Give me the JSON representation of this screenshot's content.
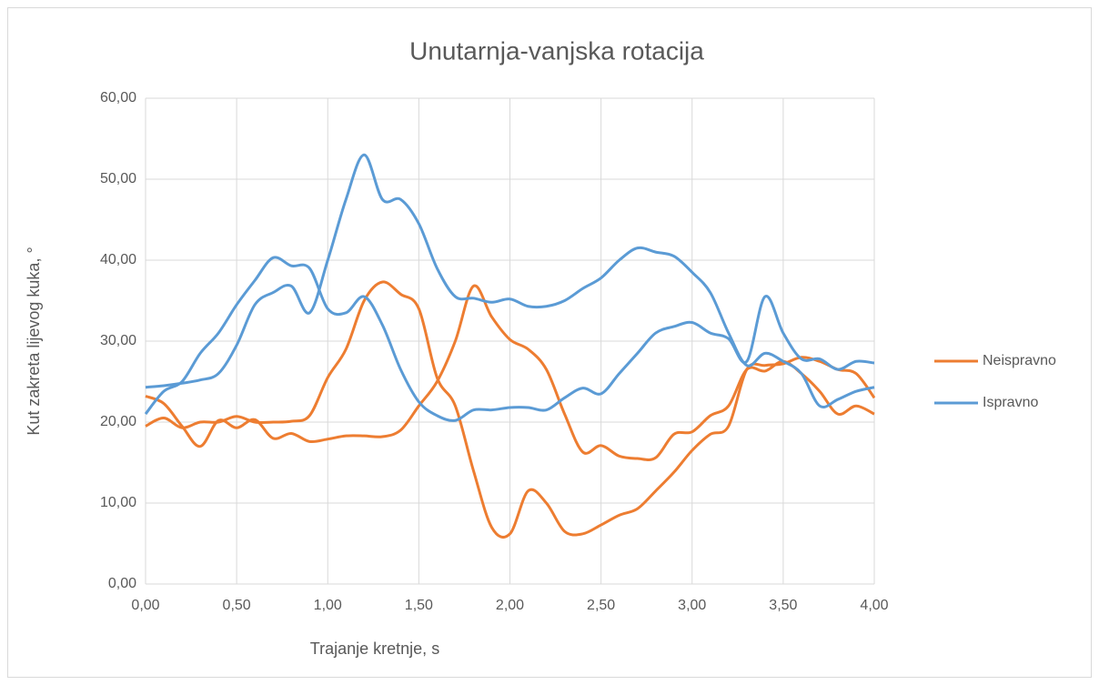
{
  "chart_data": {
    "type": "line",
    "title": "Unutarnja-vanjska rotacija",
    "x_label": "Trajanje kretnje, s",
    "y_label": "Kut zakreta lijevog kuka, °",
    "x": [
      0,
      0.1,
      0.2,
      0.3,
      0.4,
      0.5,
      0.6,
      0.7,
      0.8,
      0.9,
      1.0,
      1.1,
      1.2,
      1.3,
      1.4,
      1.5,
      1.6,
      1.7,
      1.8,
      1.9,
      2.0,
      2.1,
      2.2,
      2.3,
      2.4,
      2.5,
      2.6,
      2.7,
      2.8,
      2.9,
      3.0,
      3.1,
      3.2,
      3.3,
      3.4,
      3.5,
      3.6,
      3.7,
      3.8,
      3.9,
      4.0
    ],
    "series": [
      {
        "name": "Neispravno",
        "color": "#ed7d31",
        "values": [
          23.2,
          22.3,
          19.5,
          17.0,
          20.2,
          19.3,
          20.3,
          18.0,
          18.6,
          17.6,
          17.9,
          18.3,
          18.3,
          18.2,
          19.0,
          22.0,
          25.0,
          30.0,
          36.8,
          33.0,
          30.2,
          29.0,
          26.5,
          21.0,
          16.3,
          17.1,
          15.8,
          15.5,
          15.6,
          18.5,
          18.8,
          20.8,
          22.0,
          26.5,
          26.3,
          27.5,
          26.0,
          23.8,
          21.0,
          22.0,
          21.0
        ]
      },
      {
        "color": "#ed7d31",
        "values": [
          19.5,
          20.5,
          19.3,
          20.0,
          20.0,
          20.7,
          20.0,
          20.0,
          20.1,
          20.8,
          25.5,
          29.0,
          35.0,
          37.3,
          35.8,
          34.0,
          25.5,
          22.0,
          14.0,
          7.0,
          6.2,
          11.5,
          10.0,
          6.5,
          6.2,
          7.3,
          8.5,
          9.3,
          11.5,
          13.8,
          16.5,
          18.5,
          19.5,
          26.5,
          27.0,
          27.2,
          28.0,
          27.5,
          26.5,
          26.0,
          23.0
        ]
      },
      {
        "name": "Ispravno",
        "color": "#5b9bd5",
        "values": [
          24.3,
          24.5,
          24.8,
          25.2,
          26.0,
          29.5,
          34.5,
          36.0,
          36.8,
          33.5,
          40.0,
          47.5,
          53.0,
          47.5,
          47.5,
          44.5,
          39.0,
          35.5,
          35.3,
          34.8,
          35.2,
          34.3,
          34.3,
          35.0,
          36.5,
          37.8,
          40.0,
          41.5,
          41.0,
          40.5,
          38.5,
          36.0,
          31.0,
          27.0,
          28.5,
          27.5,
          26.0,
          22.0,
          22.8,
          23.8,
          24.3
        ]
      },
      {
        "color": "#5b9bd5",
        "values": [
          21.0,
          23.8,
          25.0,
          28.5,
          31.0,
          34.5,
          37.5,
          40.3,
          39.3,
          39.0,
          34.0,
          33.5,
          35.5,
          32.0,
          26.5,
          22.5,
          20.8,
          20.2,
          21.5,
          21.5,
          21.8,
          21.8,
          21.5,
          23.0,
          24.2,
          23.5,
          26.0,
          28.5,
          31.0,
          31.8,
          32.3,
          31.0,
          30.3,
          27.5,
          35.5,
          31.0,
          27.8,
          27.8,
          26.5,
          27.5,
          27.3
        ]
      }
    ],
    "xlim": [
      0,
      4
    ],
    "xticks": [
      {
        "value": 0,
        "label": "0,00"
      },
      {
        "value": 0.5,
        "label": "0,50"
      },
      {
        "value": 1,
        "label": "1,00"
      },
      {
        "value": 1.5,
        "label": "1,50"
      },
      {
        "value": 2,
        "label": "2,00"
      },
      {
        "value": 2.5,
        "label": "2,50"
      },
      {
        "value": 3,
        "label": "3,00"
      },
      {
        "value": 3.5,
        "label": "3,50"
      },
      {
        "value": 4,
        "label": "4,00"
      }
    ],
    "ylim": [
      0,
      60
    ],
    "yticks": [
      {
        "value": 0,
        "label": "0,00"
      },
      {
        "value": 10,
        "label": "10,00"
      },
      {
        "value": 20,
        "label": "20,00"
      },
      {
        "value": 30,
        "label": "30,00"
      },
      {
        "value": 40,
        "label": "40,00"
      },
      {
        "value": 50,
        "label": "50,00"
      },
      {
        "value": 60,
        "label": "60,00"
      }
    ],
    "grid": true,
    "legend": "right"
  }
}
